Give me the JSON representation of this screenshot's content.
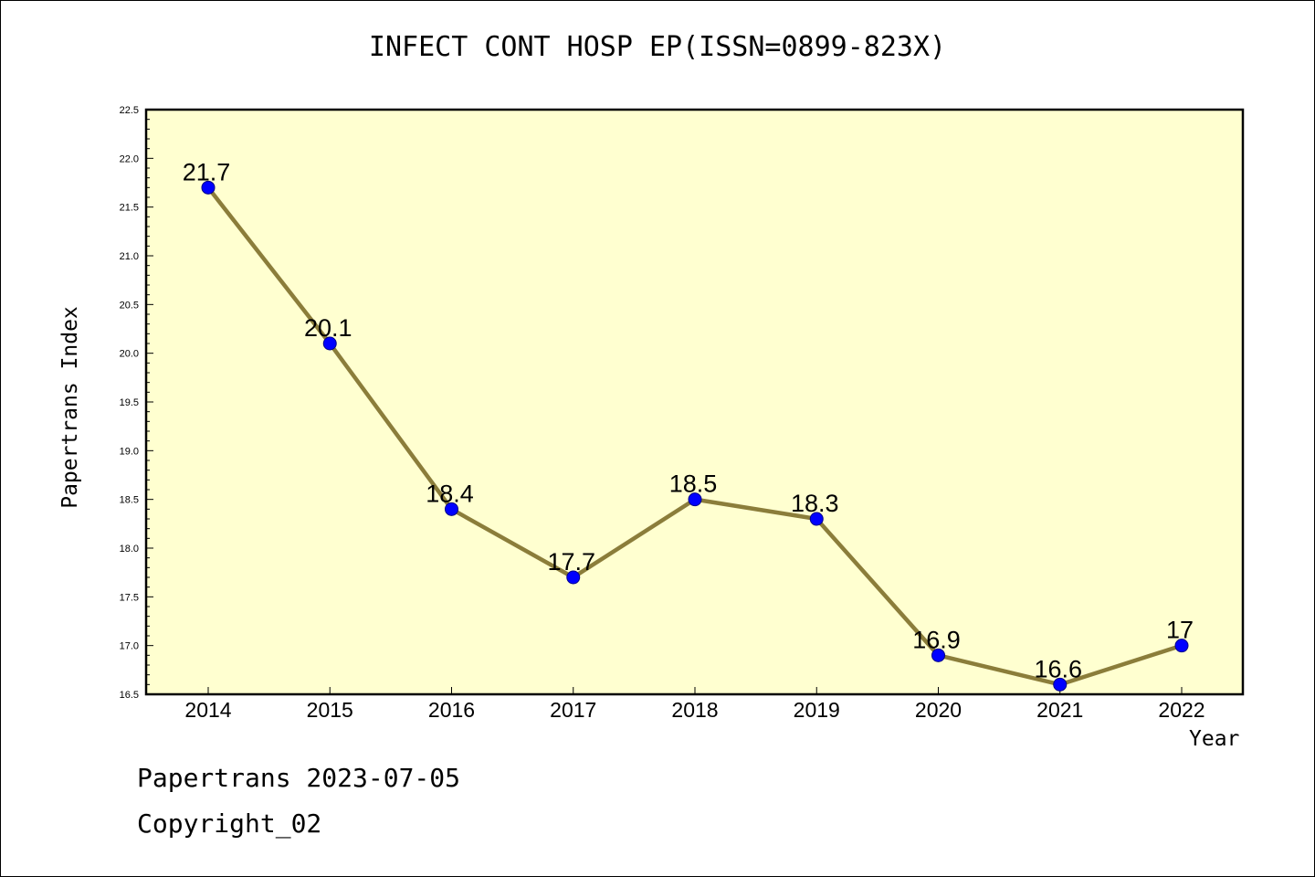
{
  "chart_data": {
    "type": "line",
    "title": "INFECT CONT HOSP EP(ISSN=0899-823X)",
    "xlabel": "Year",
    "ylabel": "Papertrans Index",
    "categories": [
      "2014",
      "2015",
      "2016",
      "2017",
      "2018",
      "2019",
      "2020",
      "2021",
      "2022"
    ],
    "values": [
      21.7,
      20.1,
      18.4,
      17.7,
      18.5,
      18.3,
      16.9,
      16.6,
      17
    ],
    "data_labels": [
      "21.7",
      "20.1",
      "18.4",
      "17.7",
      "18.5",
      "18.3",
      "16.9",
      "16.6",
      "17"
    ],
    "ylim": [
      16.5,
      22.5
    ],
    "yticks": [
      "16.5",
      "17.0",
      "17.5",
      "18.0",
      "18.5",
      "19.0",
      "19.5",
      "20.0",
      "20.5",
      "21.0",
      "21.5",
      "22.0",
      "22.5"
    ],
    "grid": false,
    "colors": {
      "plot_background": "#ffffd0",
      "line": "#8b7d3a",
      "marker": "#0000ff"
    }
  },
  "footer": {
    "line1": "Papertrans 2023-07-05",
    "line2": "Copyright_02"
  }
}
